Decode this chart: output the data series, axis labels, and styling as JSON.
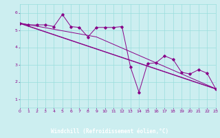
{
  "xlabel": "Windchill (Refroidissement éolien,°C)",
  "xlim": [
    0,
    23
  ],
  "ylim": [
    0.5,
    6.5
  ],
  "yticks": [
    1,
    2,
    3,
    4,
    5,
    6
  ],
  "xticks": [
    0,
    1,
    2,
    3,
    4,
    5,
    6,
    7,
    8,
    9,
    10,
    11,
    12,
    13,
    14,
    15,
    16,
    17,
    18,
    19,
    20,
    21,
    22,
    23
  ],
  "bg_color": "#cceef0",
  "grid_color": "#99dddd",
  "line_color": "#880088",
  "marker_color": "#880088",
  "footer_color": "#440044",
  "tick_color": "#880088",
  "series1_y": [
    5.4,
    5.3,
    5.3,
    5.3,
    5.2,
    5.9,
    5.2,
    5.15,
    4.6,
    5.15,
    5.15,
    5.15,
    5.2,
    2.85,
    1.4,
    3.05,
    3.1,
    3.5,
    3.3,
    2.55,
    2.45,
    2.7,
    2.5,
    1.6
  ],
  "trend1_x": [
    0,
    23
  ],
  "trend1_y": [
    5.4,
    1.6
  ],
  "trend2_x": [
    0,
    9,
    23
  ],
  "trend2_y": [
    5.4,
    4.6,
    1.6
  ],
  "trend3_x": [
    0,
    23
  ],
  "trend3_y": [
    5.38,
    1.58
  ]
}
